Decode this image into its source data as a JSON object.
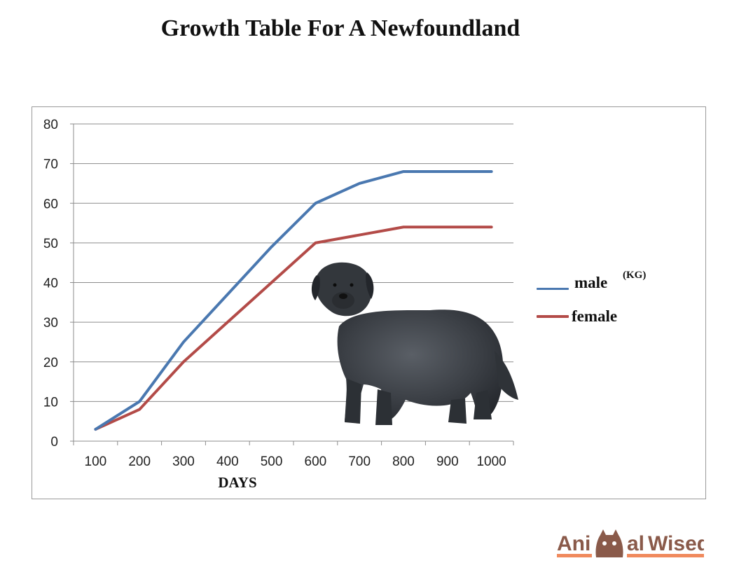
{
  "page": {
    "title": "Growth Table For A Newfoundland"
  },
  "chart_data": {
    "type": "line",
    "x_label": "DAYS",
    "categories": [
      "100",
      "200",
      "300",
      "400",
      "500",
      "600",
      "700",
      "800",
      "900",
      "1000"
    ],
    "ylim": [
      0,
      80
    ],
    "yticks": [
      0,
      10,
      20,
      30,
      40,
      50,
      60,
      70,
      80
    ],
    "grid": true,
    "legend_position": "right",
    "series": [
      {
        "name": "male",
        "color": "#4a78b0",
        "values": [
          3,
          10,
          25,
          37,
          49,
          60,
          65,
          68,
          68,
          68
        ]
      },
      {
        "name": "female",
        "color": "#b34b48",
        "values": [
          3,
          8,
          20,
          30,
          40,
          50,
          52,
          54,
          54,
          54
        ]
      }
    ],
    "unit_label": "(KG)"
  },
  "logo": {
    "text": "AnimalWised",
    "colors": {
      "brand": "#8a5a4a",
      "accent": "#f08a5d"
    }
  }
}
